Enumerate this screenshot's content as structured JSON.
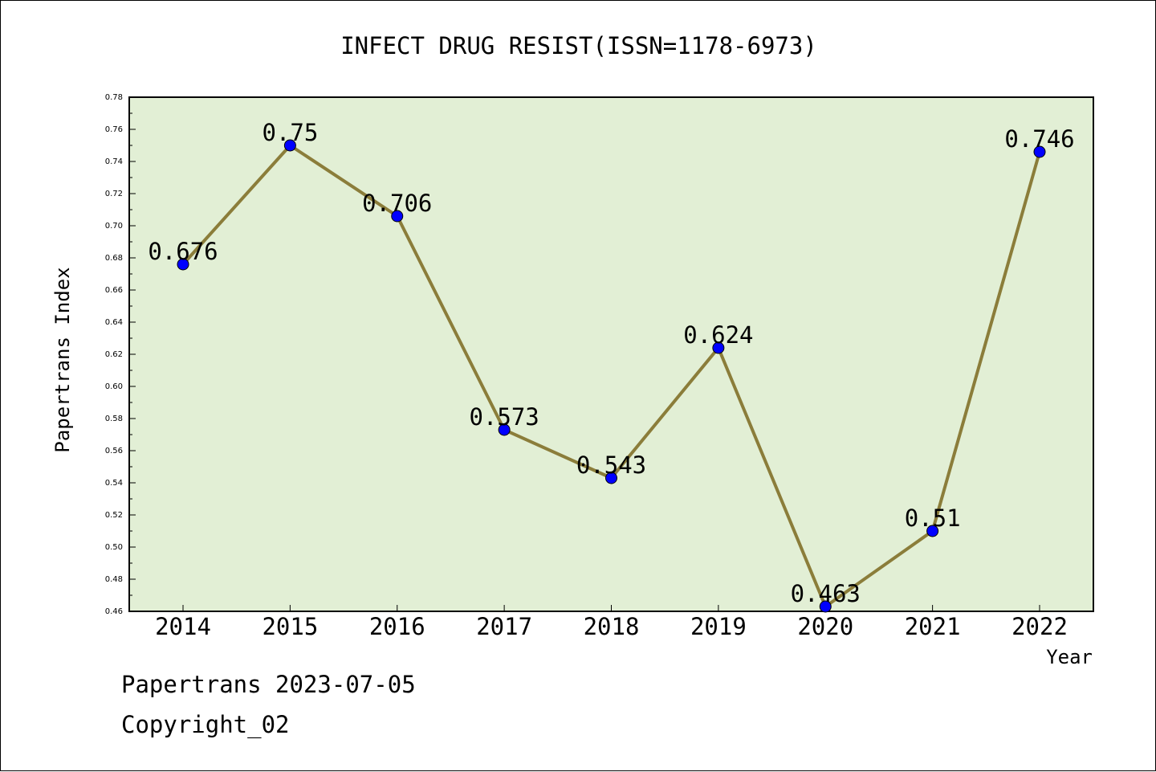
{
  "chart_data": {
    "type": "line",
    "title": "INFECT DRUG RESIST(ISSN=1178-6973)",
    "xlabel": "Year",
    "ylabel": "Papertrans Index",
    "categories": [
      "2014",
      "2015",
      "2016",
      "2017",
      "2018",
      "2019",
      "2020",
      "2021",
      "2022"
    ],
    "values": [
      0.676,
      0.75,
      0.706,
      0.573,
      0.543,
      0.624,
      0.463,
      0.51,
      0.746
    ],
    "value_labels": [
      "0.676",
      "0.75",
      "0.706",
      "0.573",
      "0.543",
      "0.624",
      "0.463",
      "0.51",
      "0.746"
    ],
    "ylim": [
      0.46,
      0.78
    ],
    "yticks": [
      "0.46",
      "0.48",
      "0.50",
      "0.52",
      "0.54",
      "0.56",
      "0.58",
      "0.60",
      "0.62",
      "0.64",
      "0.66",
      "0.68",
      "0.70",
      "0.72",
      "0.74",
      "0.76",
      "0.78"
    ],
    "grid": false,
    "colors": {
      "plot_background": "#e2efd5",
      "line": "#8b7d3a",
      "marker": "#0000ff"
    }
  },
  "footer": {
    "line1": "Papertrans 2023-07-05",
    "line2": "Copyright_02"
  }
}
